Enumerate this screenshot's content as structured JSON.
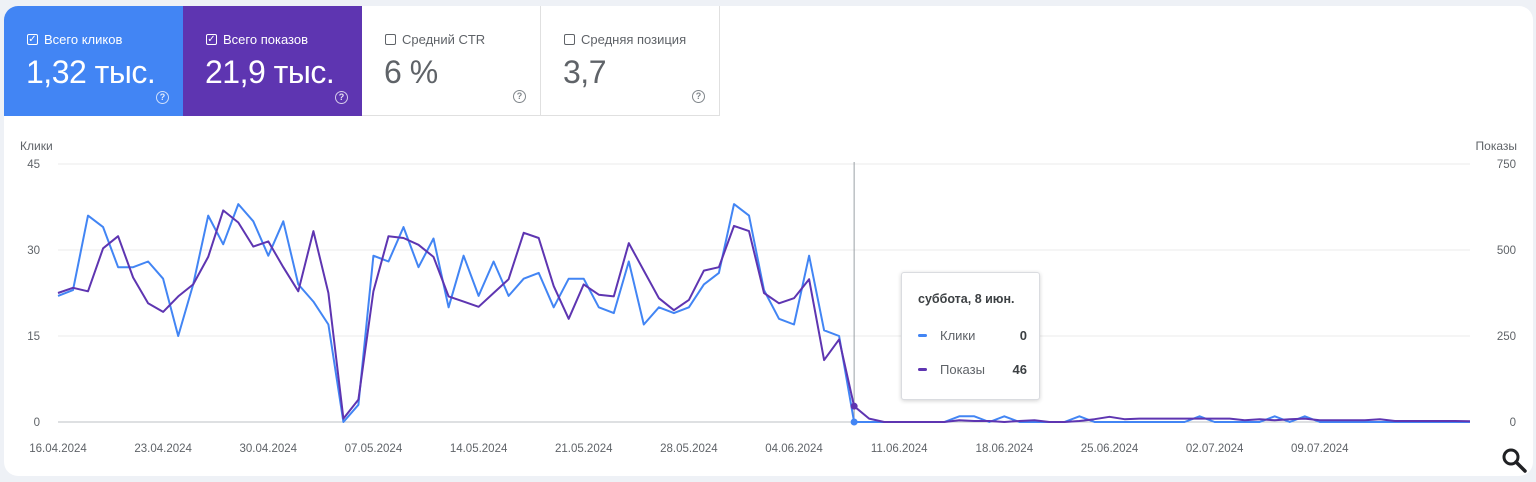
{
  "metrics": [
    {
      "label": "Всего кликов",
      "value": "1,32 тыс.",
      "checked": true,
      "color": "#4285f4"
    },
    {
      "label": "Всего показов",
      "value": "21,9 тыс.",
      "checked": true,
      "color": "#5e35b1"
    },
    {
      "label": "Средний CTR",
      "value": "6 %",
      "checked": false
    },
    {
      "label": "Средняя позиция",
      "value": "3,7",
      "checked": false
    }
  ],
  "chart_data": {
    "type": "line",
    "x_ticks": [
      "16.04.2024",
      "23.04.2024",
      "30.04.2024",
      "07.05.2024",
      "14.05.2024",
      "21.05.2024",
      "28.05.2024",
      "04.06.2024",
      "11.06.2024",
      "18.06.2024",
      "25.06.2024",
      "02.07.2024",
      "09.07.2024"
    ],
    "y_left_label": "Клики",
    "y_right_label": "Показы",
    "y_left_ticks": [
      "0",
      "15",
      "30",
      "45"
    ],
    "y_right_ticks": [
      "0",
      "250",
      "500",
      "750"
    ],
    "y_left_range": [
      0,
      45
    ],
    "y_right_range": [
      0,
      750
    ],
    "grid": true,
    "series": [
      {
        "name": "Клики",
        "color": "#4285f4",
        "axis": "left",
        "values": [
          22,
          23,
          36,
          34,
          27,
          27,
          28,
          25,
          15,
          24,
          36,
          31,
          38,
          35,
          29,
          35,
          24,
          21,
          17,
          0,
          3,
          29,
          28,
          34,
          27,
          32,
          20,
          29,
          22,
          28,
          22,
          25,
          26,
          20,
          25,
          25,
          20,
          19,
          28,
          17,
          20,
          19,
          20,
          24,
          26,
          38,
          36,
          23,
          18,
          17,
          29,
          16,
          15,
          0,
          0,
          0,
          0,
          0,
          0,
          0,
          1,
          1,
          0,
          1,
          0,
          0,
          0,
          0,
          1,
          0,
          0,
          0,
          0,
          0,
          0,
          0,
          1,
          0,
          0,
          0,
          0,
          1,
          0,
          1,
          0,
          0,
          0,
          0,
          0,
          0,
          0,
          0,
          0,
          0,
          0
        ]
      },
      {
        "name": "Показы",
        "color": "#5e35b1",
        "axis": "right",
        "values": [
          375,
          390,
          380,
          505,
          540,
          420,
          345,
          320,
          365,
          400,
          480,
          615,
          580,
          510,
          525,
          450,
          380,
          555,
          375,
          10,
          65,
          380,
          540,
          535,
          515,
          480,
          365,
          350,
          335,
          375,
          415,
          550,
          535,
          395,
          300,
          400,
          370,
          365,
          520,
          440,
          360,
          325,
          355,
          440,
          450,
          570,
          555,
          375,
          345,
          360,
          415,
          180,
          240,
          46,
          10,
          0,
          0,
          0,
          0,
          0,
          5,
          3,
          3,
          0,
          3,
          5,
          0,
          0,
          3,
          8,
          15,
          8,
          10,
          10,
          10,
          10,
          10,
          10,
          10,
          5,
          8,
          5,
          8,
          10,
          5,
          5,
          5,
          5,
          8,
          3,
          3,
          3,
          3,
          3,
          2
        ]
      }
    ]
  },
  "tooltip": {
    "date": "суббота, 8 июн.",
    "rows": [
      {
        "name": "Клики",
        "value": "0",
        "color": "#4285f4"
      },
      {
        "name": "Показы",
        "value": "46",
        "color": "#5e35b1"
      }
    ]
  },
  "icons": {
    "help": "help-circle-icon",
    "zoom": "search-icon",
    "check": "check-icon"
  }
}
